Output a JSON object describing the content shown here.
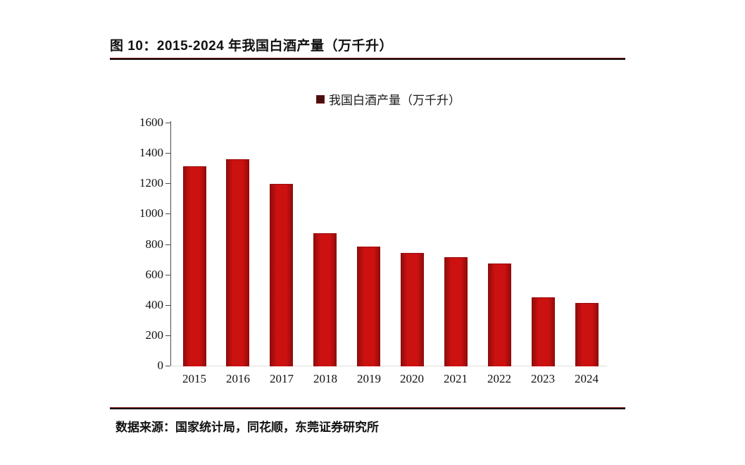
{
  "page": {
    "title": "图 10：2015-2024 年我国白酒产量（万千升）",
    "source_note": "数据来源：国家统计局，同花顺，东莞证券研究所"
  },
  "colors": {
    "bar_red": "#cc1111",
    "bar_edge_dark": "#8e0b0b",
    "legend_marker_maroon": "#4b0d0d",
    "rule_dark": "#161010",
    "axis_gray": "#4d4d4d",
    "baseline_gray": "#dcdcdc",
    "text": "#111111",
    "background": "#ffffff"
  },
  "chart_data": {
    "type": "bar",
    "title": "",
    "xlabel": "",
    "ylabel": "",
    "categories": [
      "2015",
      "2016",
      "2017",
      "2018",
      "2019",
      "2020",
      "2021",
      "2022",
      "2023",
      "2024"
    ],
    "series": [
      {
        "name": "我国白酒产量（万千升）",
        "values": [
          1312.8,
          1358.4,
          1198.1,
          871.2,
          785.9,
          740.7,
          715.6,
          671.2,
          449.2,
          414.5
        ]
      }
    ],
    "ylim": [
      0,
      1600
    ],
    "ytick_step": 200,
    "ytick_labels": [
      "0",
      "200",
      "400",
      "600",
      "800",
      "1000",
      "1200",
      "1400",
      "1600"
    ],
    "grid": false,
    "legend_position": "top-center",
    "bar_color": "#cc1111"
  }
}
